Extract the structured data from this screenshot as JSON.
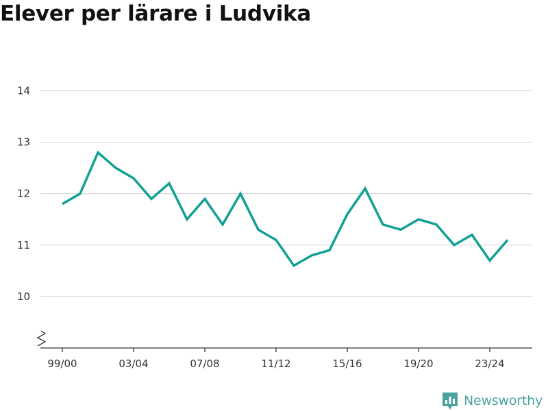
{
  "brand": {
    "name": "Newsworthy",
    "color": "#4aa3a0",
    "icon": "bar-chart-pin-icon"
  },
  "chart_data": {
    "type": "line",
    "title": "Elever per lärare i Ludvika",
    "xlabel": "",
    "ylabel": "",
    "x": [
      "99/00",
      "00/01",
      "01/02",
      "02/03",
      "03/04",
      "04/05",
      "05/06",
      "06/07",
      "07/08",
      "08/09",
      "09/10",
      "10/11",
      "11/12",
      "12/13",
      "13/14",
      "14/15",
      "15/16",
      "16/17",
      "17/18",
      "18/19",
      "19/20",
      "20/21",
      "21/22",
      "22/23",
      "23/24",
      "24/25"
    ],
    "x_tick_labels": [
      "99/00",
      "03/04",
      "07/08",
      "11/12",
      "15/16",
      "19/20",
      "23/24"
    ],
    "y_ticks": [
      10,
      11,
      12,
      13,
      14
    ],
    "ylim": [
      9,
      14.3
    ],
    "y_axis_break": true,
    "grid": true,
    "legend": "none",
    "series": [
      {
        "color": "#12a095",
        "values": [
          11.8,
          12.0,
          12.8,
          12.5,
          12.3,
          11.9,
          12.2,
          11.5,
          11.9,
          11.4,
          12.0,
          11.3,
          11.1,
          10.6,
          10.8,
          10.9,
          11.6,
          12.1,
          11.4,
          11.3,
          11.5,
          11.4,
          11.0,
          11.2,
          10.7,
          11.1
        ]
      }
    ]
  }
}
